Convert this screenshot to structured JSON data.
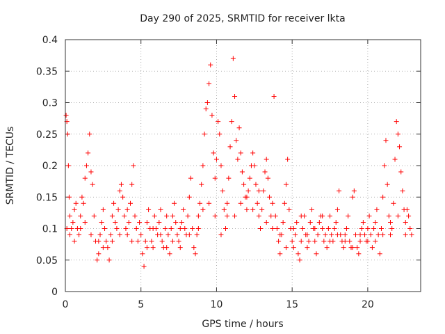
{
  "chart_data": {
    "type": "scatter",
    "title": "Day 290 of 2025, SRMTID for receiver lkta",
    "xlabel": "GPS time / hours",
    "ylabel": "SRMTID / TECUs",
    "xlim": [
      0,
      23.5
    ],
    "ylim": [
      0,
      0.4
    ],
    "grid": true,
    "marker": "+",
    "color": "#ff0000",
    "x_ticks": [
      {
        "value": 0,
        "label": "0"
      },
      {
        "value": 5,
        "label": "5"
      },
      {
        "value": 10,
        "label": "10"
      },
      {
        "value": 15,
        "label": "15"
      },
      {
        "value": 20,
        "label": "20"
      }
    ],
    "y_ticks": [
      {
        "value": 0,
        "label": "0"
      },
      {
        "value": 0.05,
        "label": "0.05"
      },
      {
        "value": 0.1,
        "label": "0.1"
      },
      {
        "value": 0.15,
        "label": "0.15"
      },
      {
        "value": 0.2,
        "label": "0.2"
      },
      {
        "value": 0.25,
        "label": "0.25"
      },
      {
        "value": 0.3,
        "label": "0.3"
      },
      {
        "value": 0.35,
        "label": "0.35"
      },
      {
        "value": 0.4,
        "label": "0.4"
      }
    ],
    "series": [
      {
        "name": "SRMTID",
        "points": [
          [
            0.05,
            0.28
          ],
          [
            0.1,
            0.27
          ],
          [
            0.15,
            0.25
          ],
          [
            0.2,
            0.2
          ],
          [
            0.25,
            0.15
          ],
          [
            0.3,
            0.12
          ],
          [
            0.4,
            0.1
          ],
          [
            0.5,
            0.11
          ],
          [
            0.6,
            0.13
          ],
          [
            0.7,
            0.14
          ],
          [
            0.8,
            0.1
          ],
          [
            0.9,
            0.09
          ],
          [
            1.0,
            0.12
          ],
          [
            1.1,
            0.15
          ],
          [
            1.2,
            0.14
          ],
          [
            1.3,
            0.18
          ],
          [
            1.4,
            0.2
          ],
          [
            1.5,
            0.22
          ],
          [
            1.6,
            0.25
          ],
          [
            1.7,
            0.19
          ],
          [
            1.8,
            0.17
          ],
          [
            1.9,
            0.12
          ],
          [
            2.0,
            0.08
          ],
          [
            2.1,
            0.05
          ],
          [
            2.2,
            0.06
          ],
          [
            2.3,
            0.09
          ],
          [
            2.4,
            0.11
          ],
          [
            2.5,
            0.13
          ],
          [
            2.6,
            0.1
          ],
          [
            2.7,
            0.08
          ],
          [
            2.8,
            0.07
          ],
          [
            2.9,
            0.05
          ],
          [
            3.0,
            0.09
          ],
          [
            3.1,
            0.12
          ],
          [
            3.2,
            0.14
          ],
          [
            3.3,
            0.11
          ],
          [
            3.4,
            0.1
          ],
          [
            3.5,
            0.13
          ],
          [
            3.6,
            0.16
          ],
          [
            3.7,
            0.17
          ],
          [
            3.8,
            0.15
          ],
          [
            3.9,
            0.12
          ],
          [
            4.0,
            0.1
          ],
          [
            4.1,
            0.09
          ],
          [
            4.2,
            0.11
          ],
          [
            4.3,
            0.14
          ],
          [
            4.4,
            0.17
          ],
          [
            4.5,
            0.2
          ],
          [
            4.6,
            0.12
          ],
          [
            4.7,
            0.1
          ],
          [
            4.8,
            0.08
          ],
          [
            4.9,
            0.11
          ],
          [
            5.0,
            0.09
          ],
          [
            5.1,
            0.06
          ],
          [
            5.2,
            0.04
          ],
          [
            5.3,
            0.08
          ],
          [
            5.4,
            0.11
          ],
          [
            5.5,
            0.13
          ],
          [
            5.6,
            0.1
          ],
          [
            5.7,
            0.08
          ],
          [
            5.8,
            0.07
          ],
          [
            5.9,
            0.12
          ],
          [
            6.0,
            0.1
          ],
          [
            6.1,
            0.09
          ],
          [
            6.2,
            0.11
          ],
          [
            6.3,
            0.13
          ],
          [
            6.4,
            0.08
          ],
          [
            6.5,
            0.07
          ],
          [
            6.6,
            0.1
          ],
          [
            6.7,
            0.12
          ],
          [
            6.8,
            0.09
          ],
          [
            6.9,
            0.06
          ],
          [
            7.0,
            0.1
          ],
          [
            7.1,
            0.12
          ],
          [
            7.2,
            0.14
          ],
          [
            7.3,
            0.11
          ],
          [
            7.4,
            0.09
          ],
          [
            7.5,
            0.08
          ],
          [
            7.6,
            0.1
          ],
          [
            7.7,
            0.11
          ],
          [
            7.8,
            0.13
          ],
          [
            7.9,
            0.1
          ],
          [
            8.0,
            0.09
          ],
          [
            8.1,
            0.12
          ],
          [
            8.2,
            0.15
          ],
          [
            8.3,
            0.18
          ],
          [
            8.4,
            0.1
          ],
          [
            8.5,
            0.07
          ],
          [
            8.6,
            0.06
          ],
          [
            8.7,
            0.09
          ],
          [
            8.8,
            0.12
          ],
          [
            8.9,
            0.14
          ],
          [
            9.0,
            0.17
          ],
          [
            9.1,
            0.2
          ],
          [
            9.2,
            0.25
          ],
          [
            9.3,
            0.29
          ],
          [
            9.4,
            0.3
          ],
          [
            9.5,
            0.33
          ],
          [
            9.6,
            0.36
          ],
          [
            9.7,
            0.28
          ],
          [
            9.8,
            0.22
          ],
          [
            9.9,
            0.18
          ],
          [
            10.0,
            0.21
          ],
          [
            10.1,
            0.27
          ],
          [
            10.2,
            0.25
          ],
          [
            10.3,
            0.2
          ],
          [
            10.4,
            0.16
          ],
          [
            10.5,
            0.13
          ],
          [
            10.6,
            0.1
          ],
          [
            10.7,
            0.12
          ],
          [
            10.8,
            0.18
          ],
          [
            10.9,
            0.23
          ],
          [
            11.0,
            0.27
          ],
          [
            11.1,
            0.37
          ],
          [
            11.2,
            0.31
          ],
          [
            11.3,
            0.24
          ],
          [
            11.4,
            0.21
          ],
          [
            11.5,
            0.26
          ],
          [
            11.6,
            0.22
          ],
          [
            11.7,
            0.19
          ],
          [
            11.8,
            0.17
          ],
          [
            11.9,
            0.15
          ],
          [
            12.0,
            0.13
          ],
          [
            12.1,
            0.16
          ],
          [
            12.2,
            0.18
          ],
          [
            12.3,
            0.2
          ],
          [
            12.4,
            0.22
          ],
          [
            12.5,
            0.2
          ],
          [
            12.6,
            0.17
          ],
          [
            12.7,
            0.14
          ],
          [
            12.8,
            0.12
          ],
          [
            12.9,
            0.1
          ],
          [
            13.0,
            0.13
          ],
          [
            13.1,
            0.16
          ],
          [
            13.2,
            0.19
          ],
          [
            13.3,
            0.21
          ],
          [
            13.4,
            0.18
          ],
          [
            13.5,
            0.15
          ],
          [
            13.6,
            0.12
          ],
          [
            13.7,
            0.14
          ],
          [
            13.8,
            0.31
          ],
          [
            13.9,
            0.12
          ],
          [
            14.0,
            0.1
          ],
          [
            14.1,
            0.08
          ],
          [
            14.2,
            0.06
          ],
          [
            14.3,
            0.09
          ],
          [
            14.4,
            0.11
          ],
          [
            14.5,
            0.14
          ],
          [
            14.6,
            0.17
          ],
          [
            14.7,
            0.21
          ],
          [
            14.8,
            0.13
          ],
          [
            14.9,
            0.1
          ],
          [
            15.0,
            0.08
          ],
          [
            15.1,
            0.07
          ],
          [
            15.2,
            0.09
          ],
          [
            15.3,
            0.11
          ],
          [
            15.4,
            0.06
          ],
          [
            15.5,
            0.05
          ],
          [
            15.6,
            0.08
          ],
          [
            15.7,
            0.1
          ],
          [
            15.8,
            0.12
          ],
          [
            15.9,
            0.09
          ],
          [
            16.0,
            0.07
          ],
          [
            16.1,
            0.08
          ],
          [
            16.2,
            0.11
          ],
          [
            16.3,
            0.13
          ],
          [
            16.4,
            0.1
          ],
          [
            16.5,
            0.08
          ],
          [
            16.6,
            0.06
          ],
          [
            16.7,
            0.09
          ],
          [
            16.8,
            0.11
          ],
          [
            16.9,
            0.12
          ],
          [
            17.0,
            0.1
          ],
          [
            17.1,
            0.08
          ],
          [
            17.2,
            0.09
          ],
          [
            17.3,
            0.07
          ],
          [
            17.4,
            0.1
          ],
          [
            17.5,
            0.12
          ],
          [
            17.6,
            0.09
          ],
          [
            17.7,
            0.08
          ],
          [
            17.8,
            0.1
          ],
          [
            17.9,
            0.11
          ],
          [
            18.0,
            0.13
          ],
          [
            18.1,
            0.16
          ],
          [
            18.2,
            0.09
          ],
          [
            18.3,
            0.08
          ],
          [
            18.4,
            0.07
          ],
          [
            18.5,
            0.09
          ],
          [
            18.6,
            0.1
          ],
          [
            18.7,
            0.12
          ],
          [
            18.8,
            0.08
          ],
          [
            18.9,
            0.07
          ],
          [
            19.0,
            0.15
          ],
          [
            19.1,
            0.16
          ],
          [
            19.2,
            0.09
          ],
          [
            19.3,
            0.07
          ],
          [
            19.4,
            0.06
          ],
          [
            19.5,
            0.08
          ],
          [
            19.6,
            0.1
          ],
          [
            19.7,
            0.11
          ],
          [
            19.8,
            0.09
          ],
          [
            19.9,
            0.08
          ],
          [
            20.0,
            0.1
          ],
          [
            20.1,
            0.12
          ],
          [
            20.2,
            0.09
          ],
          [
            20.3,
            0.07
          ],
          [
            20.4,
            0.1
          ],
          [
            20.5,
            0.11
          ],
          [
            20.6,
            0.13
          ],
          [
            20.7,
            0.09
          ],
          [
            20.8,
            0.06
          ],
          [
            20.9,
            0.1
          ],
          [
            21.0,
            0.15
          ],
          [
            21.1,
            0.2
          ],
          [
            21.2,
            0.24
          ],
          [
            21.3,
            0.17
          ],
          [
            21.4,
            0.12
          ],
          [
            21.5,
            0.09
          ],
          [
            21.6,
            0.1
          ],
          [
            21.7,
            0.14
          ],
          [
            21.8,
            0.21
          ],
          [
            21.9,
            0.27
          ],
          [
            22.0,
            0.25
          ],
          [
            22.1,
            0.23
          ],
          [
            22.2,
            0.19
          ],
          [
            22.3,
            0.16
          ],
          [
            22.4,
            0.13
          ],
          [
            22.5,
            0.11
          ],
          [
            22.6,
            0.13
          ],
          [
            22.7,
            0.12
          ],
          [
            22.8,
            0.1
          ],
          [
            22.9,
            0.09
          ],
          [
            0.1,
            0.1
          ],
          [
            0.3,
            0.09
          ],
          [
            0.6,
            0.08
          ],
          [
            1.0,
            0.1
          ],
          [
            1.3,
            0.11
          ],
          [
            1.7,
            0.09
          ],
          [
            2.2,
            0.08
          ],
          [
            2.5,
            0.07
          ],
          [
            3.1,
            0.08
          ],
          [
            3.6,
            0.09
          ],
          [
            4.1,
            0.13
          ],
          [
            4.4,
            0.08
          ],
          [
            5.4,
            0.07
          ],
          [
            5.8,
            0.1
          ],
          [
            6.3,
            0.09
          ],
          [
            6.7,
            0.07
          ],
          [
            7.1,
            0.08
          ],
          [
            7.6,
            0.07
          ],
          [
            8.2,
            0.09
          ],
          [
            8.8,
            0.1
          ],
          [
            9.1,
            0.13
          ],
          [
            9.5,
            0.14
          ],
          [
            9.9,
            0.12
          ],
          [
            10.3,
            0.09
          ],
          [
            10.7,
            0.14
          ],
          [
            11.2,
            0.12
          ],
          [
            11.6,
            0.14
          ],
          [
            12.0,
            0.15
          ],
          [
            12.4,
            0.13
          ],
          [
            12.8,
            0.16
          ],
          [
            13.3,
            0.11
          ],
          [
            13.7,
            0.1
          ],
          [
            14.2,
            0.09
          ],
          [
            14.6,
            0.07
          ],
          [
            15.1,
            0.1
          ],
          [
            15.6,
            0.12
          ],
          [
            16.0,
            0.09
          ],
          [
            16.5,
            0.1
          ],
          [
            17.0,
            0.12
          ],
          [
            17.5,
            0.08
          ],
          [
            18.0,
            0.09
          ],
          [
            18.5,
            0.08
          ],
          [
            19.0,
            0.07
          ],
          [
            19.5,
            0.09
          ],
          [
            20.0,
            0.08
          ],
          [
            20.5,
            0.08
          ],
          [
            21.0,
            0.09
          ],
          [
            21.5,
            0.11
          ],
          [
            22.0,
            0.12
          ],
          [
            22.5,
            0.09
          ]
        ]
      }
    ]
  }
}
